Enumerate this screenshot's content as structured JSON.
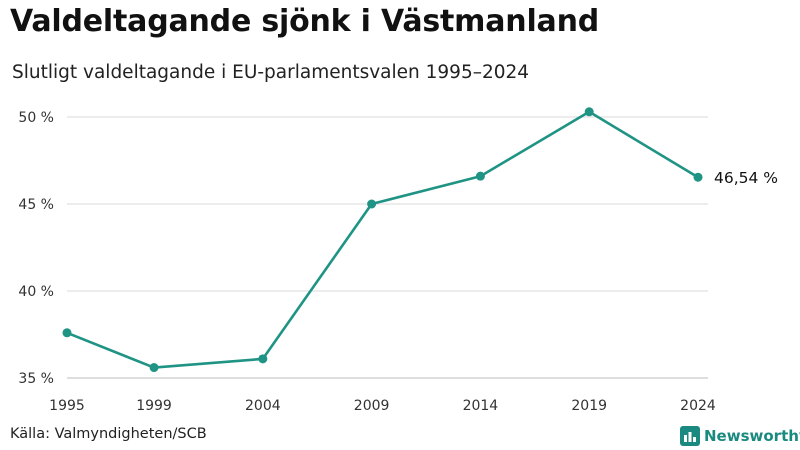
{
  "header": {
    "title": "Valdeltagande sjönk i Västmanland",
    "subtitle": "Slutligt valdeltagande i EU-parlamentsvalen 1995–2024"
  },
  "footer": {
    "source": "Källa: Valmyndigheten/SCB",
    "brand": "Newsworthy"
  },
  "colors": {
    "line": "#1f9485",
    "grid": "#d9d9d9",
    "brand": "#1a8a80"
  },
  "chart_data": {
    "type": "line",
    "title": "Valdeltagande sjönk i Västmanland",
    "subtitle": "Slutligt valdeltagande i EU-parlamentsvalen 1995–2024",
    "xlabel": "",
    "ylabel": "",
    "x": [
      1995,
      1999,
      2004,
      2009,
      2014,
      2019,
      2024
    ],
    "x_tick_labels": [
      "1995",
      "1999",
      "2004",
      "2009",
      "2014",
      "2019",
      "2024"
    ],
    "series": [
      {
        "name": "Valdeltagande",
        "values": [
          37.6,
          35.6,
          36.1,
          45.0,
          46.6,
          50.3,
          46.54
        ]
      }
    ],
    "y_ticks": [
      35,
      40,
      45,
      50
    ],
    "y_tick_labels": [
      "35 %",
      "40 %",
      "45 %",
      "50 %"
    ],
    "ylim": [
      35,
      50
    ],
    "grid": true,
    "last_value_label": "46,54 %"
  }
}
